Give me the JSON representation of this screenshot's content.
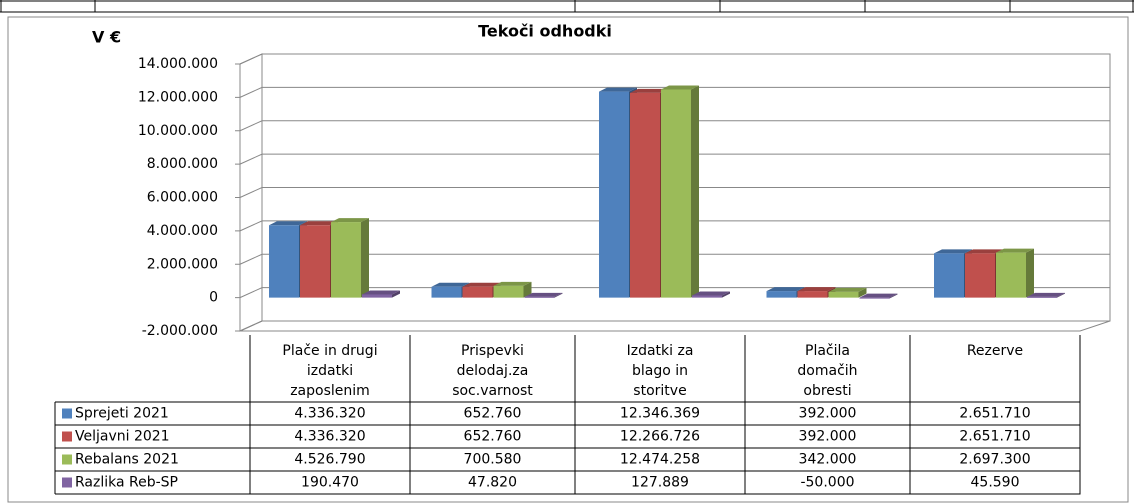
{
  "chart_data": {
    "type": "bar3d",
    "title": "Tekoči odhodki",
    "y_label": "V €",
    "categories": [
      [
        "Plače in drugi",
        "izdatki",
        "zaposlenim"
      ],
      [
        "Prispevki",
        "delodaj.za",
        "soc.varnost"
      ],
      [
        "Izdatki za",
        "blago in",
        "storitve"
      ],
      [
        "Plačila",
        "domačih",
        "obresti"
      ],
      [
        "Rezerve"
      ]
    ],
    "series": [
      {
        "name": "Sprejeti 2021",
        "color": "#4f81bd",
        "values": [
          4336320,
          652760,
          12346369,
          392000,
          2651710
        ],
        "value_labels": [
          "4.336.320",
          "652.760",
          "12.346.369",
          "392.000",
          "2.651.710"
        ]
      },
      {
        "name": "Veljavni 2021",
        "color": "#c0504d",
        "values": [
          4336320,
          652760,
          12266726,
          392000,
          2651710
        ],
        "value_labels": [
          "4.336.320",
          "652.760",
          "12.266.726",
          "392.000",
          "2.651.710"
        ]
      },
      {
        "name": "Rebalans 2021",
        "color": "#9bbb59",
        "values": [
          4526790,
          700580,
          12474258,
          342000,
          2697300
        ],
        "value_labels": [
          "4.526.790",
          "700.580",
          "12.474.258",
          "342.000",
          "2.697.300"
        ]
      },
      {
        "name": "Razlika Reb-SP",
        "color": "#8064a2",
        "values": [
          190470,
          47820,
          127889,
          -50000,
          45590
        ],
        "value_labels": [
          "190.470",
          "47.820",
          "127.889",
          "-50.000",
          "45.590"
        ]
      }
    ],
    "ylim": [
      -2000000,
      14000000
    ],
    "yticks": [
      {
        "value": -2000000,
        "label": "-2.000.000"
      },
      0,
      {
        "value": 2000000,
        "label": "2.000.000"
      },
      {
        "value": 4000000,
        "label": "4.000.000"
      },
      {
        "value": 6000000,
        "label": "6.000.000"
      },
      {
        "value": 8000000,
        "label": "8.000.000"
      },
      {
        "value": 10000000,
        "label": "10.000.000"
      },
      {
        "value": 12000000,
        "label": "12.000.000"
      },
      {
        "value": 14000000,
        "label": "14.000.000"
      }
    ],
    "grid": true
  }
}
